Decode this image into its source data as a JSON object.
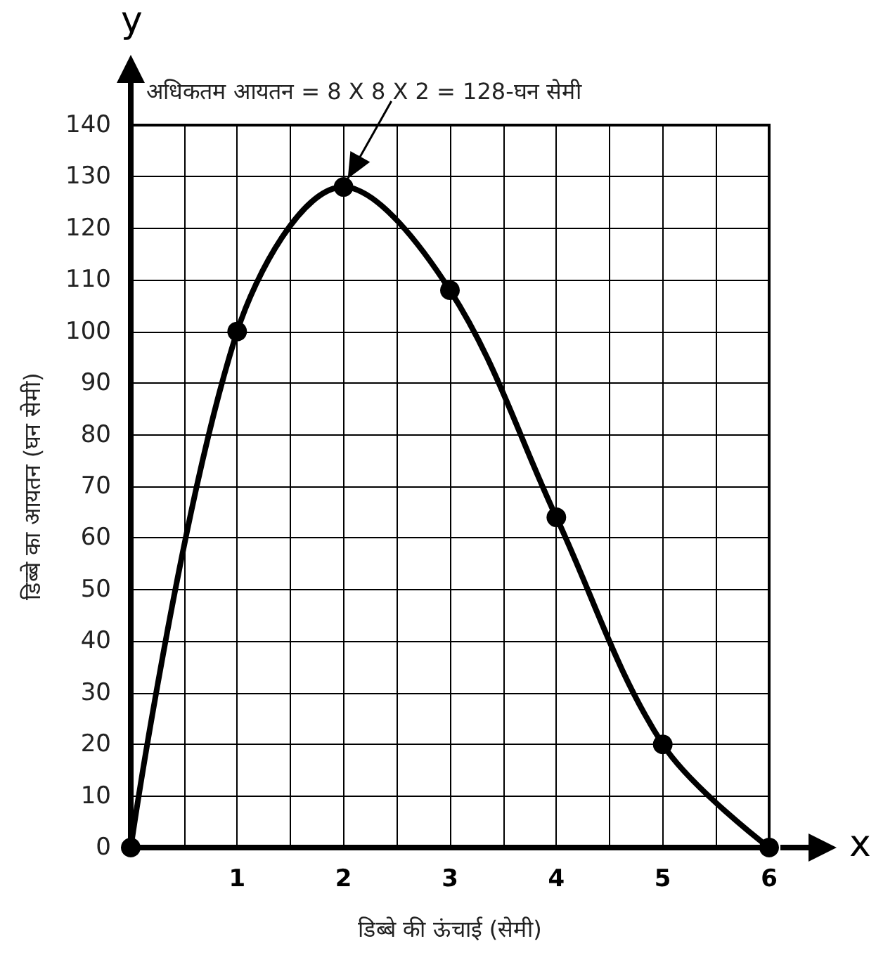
{
  "chart_data": {
    "type": "line",
    "xlabel": "डिब्बे की ऊंचाई (सेमी)",
    "ylabel": "डिब्बे का आयतन (घन सेमी)",
    "annotations": [
      {
        "text": "अधिकतम आयतन = 8 X 8 X 2 = 128-घन सेमी",
        "x": 2,
        "y": 128
      },
      "y",
      "x"
    ],
    "x": [
      0,
      1,
      2,
      3,
      4,
      5,
      6
    ],
    "series": [
      {
        "color": "#000000",
        "values": [
          0,
          100,
          128,
          108,
          64,
          20,
          0
        ]
      }
    ],
    "xlim": [
      0,
      6
    ],
    "xticks": [
      {
        "value": 0,
        "label": null
      },
      {
        "value": 0.5,
        "label": null
      },
      1,
      {
        "value": 1.5,
        "label": null
      },
      2,
      {
        "value": 2.5,
        "label": null
      },
      3,
      {
        "value": 3.5,
        "label": null
      },
      4,
      {
        "value": 4.5,
        "label": null
      },
      5,
      {
        "value": 5.5,
        "label": null
      },
      6
    ],
    "ylim": [
      0,
      140
    ],
    "yticks": [
      0,
      10,
      20,
      30,
      40,
      50,
      60,
      70,
      80,
      90,
      100,
      110,
      120,
      130,
      140
    ],
    "grid": true,
    "marker": "circle",
    "line_style": "solid"
  }
}
